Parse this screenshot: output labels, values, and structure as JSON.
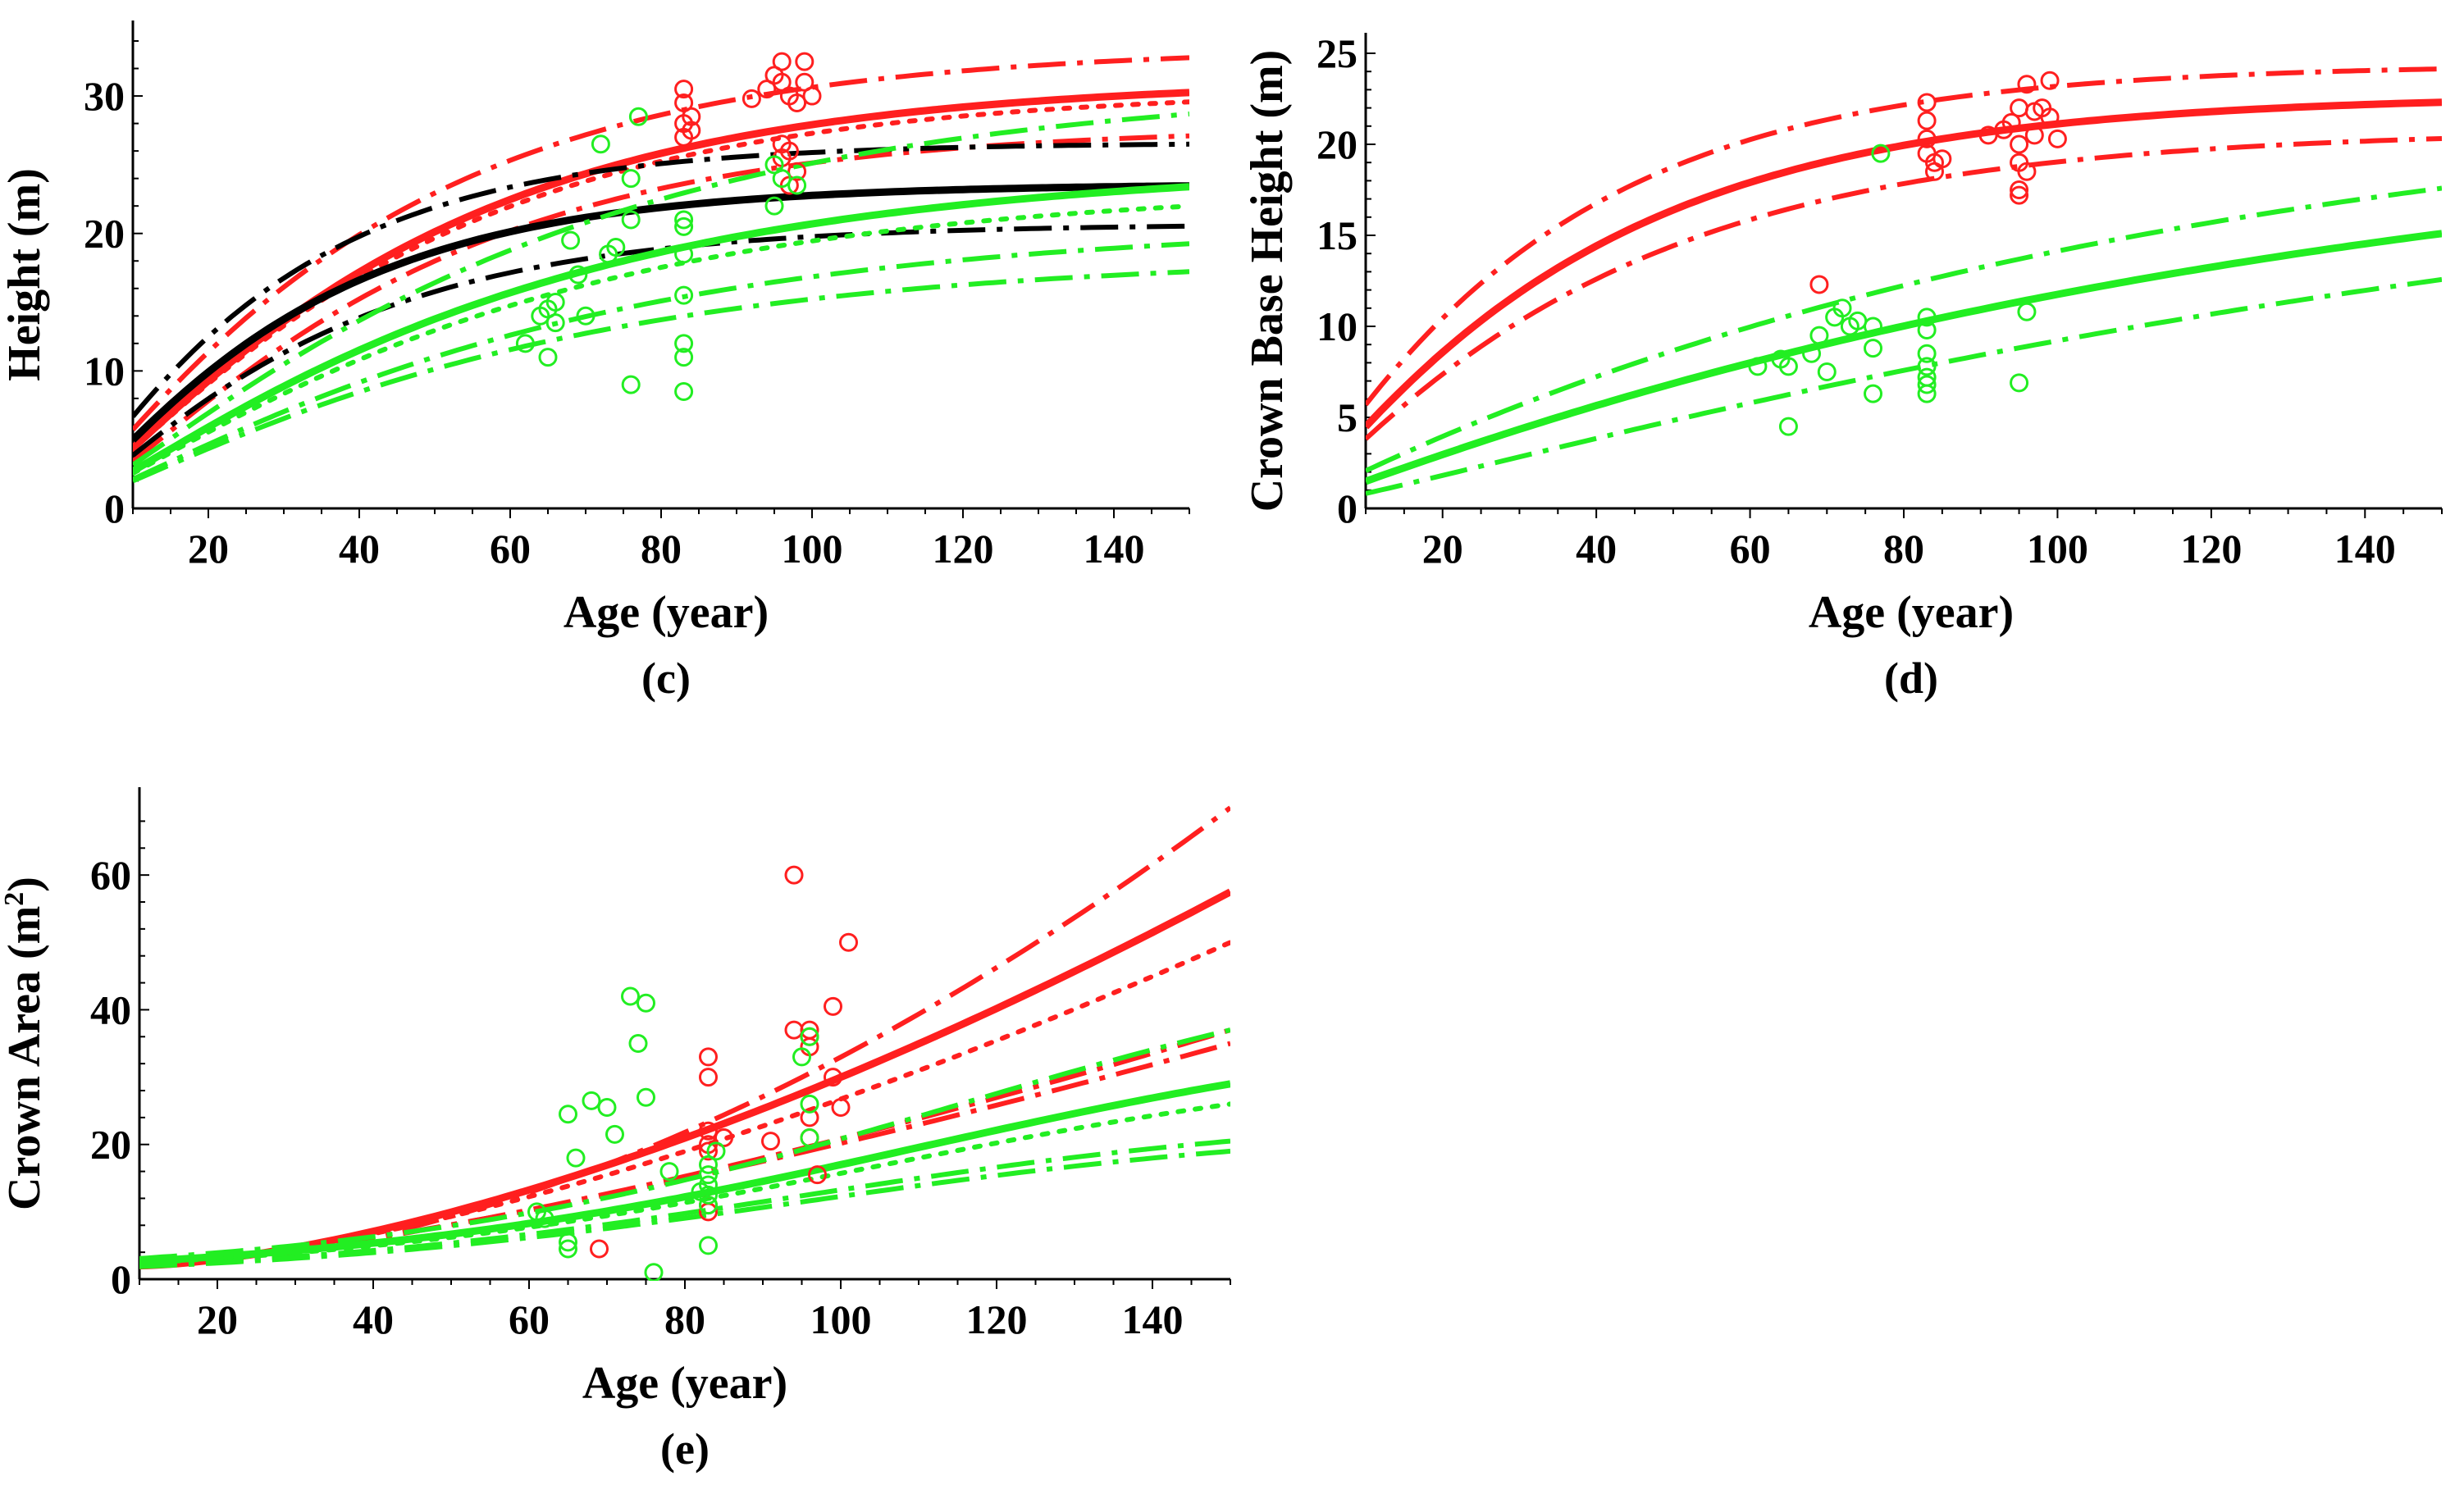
{
  "colors": {
    "red": "#ff1f1f",
    "green": "#22ee22",
    "black": "#000000"
  },
  "chart_data": [
    {
      "id": "c",
      "type": "line",
      "panel_label": "(c)",
      "xlabel": "Age (year)",
      "ylabel": "Height (m)",
      "ylabel_unit_sup": "",
      "xlim": [
        10,
        150
      ],
      "ylim": [
        0,
        34
      ],
      "xticks": [
        20,
        40,
        60,
        80,
        100,
        120,
        140
      ],
      "yticks": [
        0,
        10,
        20,
        30
      ],
      "grid": false,
      "legend": "none",
      "series": [
        {
          "color": "red",
          "style": "solid",
          "model": "sat",
          "params": [
            31.2,
            0.025,
            1.3
          ]
        },
        {
          "color": "red",
          "style": "dashdot",
          "model": "sat",
          "params": [
            33.6,
            0.026,
            1.2
          ]
        },
        {
          "color": "red",
          "style": "dashdot",
          "model": "sat",
          "params": [
            27.8,
            0.027,
            1.45
          ]
        },
        {
          "color": "red",
          "style": "dotted",
          "model": "sat",
          "params": [
            30.5,
            0.025,
            1.3
          ]
        },
        {
          "color": "black",
          "style": "solid",
          "model": "sat",
          "params": [
            23.6,
            0.036,
            1.3
          ]
        },
        {
          "color": "black",
          "style": "dashdot",
          "model": "sat",
          "params": [
            26.6,
            0.038,
            1.2
          ]
        },
        {
          "color": "black",
          "style": "dashdot",
          "model": "sat",
          "params": [
            20.7,
            0.034,
            1.35
          ]
        },
        {
          "color": "green",
          "style": "solid",
          "model": "sat",
          "params": [
            25.0,
            0.02,
            1.3
          ]
        },
        {
          "color": "green",
          "style": "dashdot",
          "model": "sat",
          "params": [
            31.0,
            0.019,
            1.3
          ]
        },
        {
          "color": "green",
          "style": "dashdot",
          "model": "sat",
          "params": [
            20.8,
            0.019,
            1.3
          ]
        },
        {
          "color": "green",
          "style": "dashdot",
          "model": "sat",
          "params": [
            18.4,
            0.02,
            1.3
          ]
        },
        {
          "color": "green",
          "style": "dotted",
          "model": "sat",
          "params": [
            23.5,
            0.02,
            1.3
          ]
        }
      ],
      "scatter": [
        {
          "color": "red",
          "points": [
            [
              83,
              30.5
            ],
            [
              83,
              29.5
            ],
            [
              83,
              28
            ],
            [
              84,
              28.5
            ],
            [
              84,
              27.5
            ],
            [
              83,
              27
            ],
            [
              92,
              29.8
            ],
            [
              94,
              30.5
            ],
            [
              95,
              31.5
            ],
            [
              96,
              32.5
            ],
            [
              96,
              31
            ],
            [
              97,
              30
            ],
            [
              98,
              29.5
            ],
            [
              99,
              32.5
            ],
            [
              99,
              31
            ],
            [
              100,
              30
            ],
            [
              96,
              26.5
            ],
            [
              96,
              25.5
            ],
            [
              97,
              26
            ],
            [
              98,
              24.5
            ],
            [
              97,
              23.5
            ]
          ]
        },
        {
          "color": "green",
          "points": [
            [
              62,
              12
            ],
            [
              64,
              14
            ],
            [
              65,
              11
            ],
            [
              65,
              14.5
            ],
            [
              66,
              15
            ],
            [
              66,
              13.5
            ],
            [
              68,
              19.5
            ],
            [
              69,
              17
            ],
            [
              70,
              14
            ],
            [
              72,
              26.5
            ],
            [
              73,
              18.5
            ],
            [
              74,
              19
            ],
            [
              76,
              9
            ],
            [
              76,
              21
            ],
            [
              76,
              24
            ],
            [
              77,
              28.5
            ],
            [
              83,
              8.5
            ],
            [
              83,
              11
            ],
            [
              83,
              12
            ],
            [
              83,
              15.5
            ],
            [
              83,
              18.5
            ],
            [
              83,
              20.5
            ],
            [
              83,
              21
            ],
            [
              95,
              22
            ],
            [
              96,
              24
            ],
            [
              95,
              25
            ],
            [
              98,
              23.5
            ]
          ]
        }
      ]
    },
    {
      "id": "d",
      "type": "line",
      "panel_label": "(d)",
      "xlabel": "Age (year)",
      "ylabel": "Crown Base Height (m)",
      "ylabel_unit_sup": "",
      "xlim": [
        10,
        150
      ],
      "ylim": [
        0,
        25
      ],
      "xticks": [
        20,
        40,
        60,
        80,
        100,
        120,
        140
      ],
      "yticks": [
        0,
        5,
        10,
        15,
        20,
        25
      ],
      "grid": false,
      "legend": "none",
      "series": [
        {
          "color": "red",
          "style": "solid",
          "model": "sat",
          "params": [
            22.7,
            0.028,
            1.15
          ]
        },
        {
          "color": "red",
          "style": "dashdot",
          "model": "sat",
          "params": [
            24.4,
            0.031,
            1.1
          ]
        },
        {
          "color": "red",
          "style": "dashdot",
          "model": "sat",
          "params": [
            20.8,
            0.026,
            1.15
          ]
        },
        {
          "color": "green",
          "style": "solid",
          "model": "sat",
          "params": [
            22.0,
            0.008,
            1.05
          ]
        },
        {
          "color": "green",
          "style": "dashdot",
          "model": "sat",
          "params": [
            23.5,
            0.0092,
            1.0
          ]
        },
        {
          "color": "green",
          "style": "dashdot",
          "model": "sat",
          "params": [
            21.5,
            0.0068,
            1.2
          ]
        }
      ],
      "scatter": [
        {
          "color": "red",
          "points": [
            [
              69,
              12.3
            ],
            [
              83,
              22.3
            ],
            [
              83,
              21.3
            ],
            [
              83,
              20.3
            ],
            [
              83,
              19.5
            ],
            [
              84,
              19
            ],
            [
              84,
              18.5
            ],
            [
              85,
              19.2
            ],
            [
              91,
              20.5
            ],
            [
              93,
              20.8
            ],
            [
              95,
              22
            ],
            [
              95,
              20
            ],
            [
              95,
              19
            ],
            [
              95,
              17.5
            ],
            [
              95,
              17.2
            ],
            [
              96,
              23.3
            ],
            [
              97,
              21.8
            ],
            [
              97,
              20.5
            ],
            [
              98,
              22
            ],
            [
              99,
              23.5
            ],
            [
              99,
              21.5
            ],
            [
              100,
              20.3
            ],
            [
              96,
              18.5
            ],
            [
              94,
              21.2
            ]
          ]
        },
        {
          "color": "green",
          "points": [
            [
              61,
              7.8
            ],
            [
              64,
              8.2
            ],
            [
              65,
              4.5
            ],
            [
              65,
              7.8
            ],
            [
              68,
              8.5
            ],
            [
              69,
              9.5
            ],
            [
              70,
              7.5
            ],
            [
              71,
              10.5
            ],
            [
              72,
              11
            ],
            [
              73,
              10
            ],
            [
              74,
              10.3
            ],
            [
              76,
              6.3
            ],
            [
              76,
              8.8
            ],
            [
              76,
              10
            ],
            [
              77,
              19.5
            ],
            [
              83,
              6.3
            ],
            [
              83,
              6.8
            ],
            [
              83,
              7.2
            ],
            [
              83,
              7.8
            ],
            [
              83,
              8.5
            ],
            [
              83,
              9.8
            ],
            [
              83,
              10.5
            ],
            [
              95,
              6.9
            ],
            [
              96,
              10.8
            ]
          ]
        }
      ]
    },
    {
      "id": "e",
      "type": "line",
      "panel_label": "(e)",
      "xlabel": "Age (year)",
      "ylabel": "Crown Area (m",
      "ylabel_unit_sup": "2",
      "ylabel_suffix": ")",
      "xlim": [
        10,
        150
      ],
      "ylim": [
        0,
        70
      ],
      "xticks": [
        20,
        40,
        60,
        80,
        100,
        120,
        140
      ],
      "yticks": [
        0,
        20,
        40,
        60
      ],
      "grid": false,
      "legend": "none",
      "series": [
        {
          "color": "red",
          "style": "solid",
          "model": "pow",
          "params": [
            57.5,
            2.0,
            1.55
          ]
        },
        {
          "color": "red",
          "style": "dashdot",
          "model": "pow",
          "params": [
            70.0,
            2.0,
            1.78
          ]
        },
        {
          "color": "red",
          "style": "dashdot",
          "model": "pow",
          "params": [
            35.0,
            2.0,
            1.35
          ]
        },
        {
          "color": "red",
          "style": "dashdot",
          "model": "pow",
          "params": [
            37.0,
            2.0,
            1.4
          ]
        },
        {
          "color": "red",
          "style": "dotted",
          "model": "pow",
          "params": [
            50.0,
            2.0,
            1.5
          ]
        },
        {
          "color": "green",
          "style": "solid",
          "model": "log",
          "params": [
            29.0,
            110,
            38
          ]
        },
        {
          "color": "green",
          "style": "dashdot",
          "model": "log",
          "params": [
            37.0,
            115,
            38
          ]
        },
        {
          "color": "green",
          "style": "dashdot",
          "model": "log",
          "params": [
            20.5,
            95,
            35
          ]
        },
        {
          "color": "green",
          "style": "dashdot",
          "model": "log",
          "params": [
            19.0,
            95,
            35
          ]
        },
        {
          "color": "green",
          "style": "dotted",
          "model": "log",
          "params": [
            26.0,
            105,
            37
          ]
        }
      ],
      "scatter": [
        {
          "color": "red",
          "points": [
            [
              69,
              4.5
            ],
            [
              83,
              10
            ],
            [
              83,
              11
            ],
            [
              83,
              19
            ],
            [
              83,
              20
            ],
            [
              83,
              22
            ],
            [
              83,
              30
            ],
            [
              83,
              33
            ],
            [
              85,
              21
            ],
            [
              91,
              20.5
            ],
            [
              94,
              60
            ],
            [
              94,
              37
            ],
            [
              96,
              34.5
            ],
            [
              96,
              36
            ],
            [
              96,
              37
            ],
            [
              96,
              24
            ],
            [
              96,
              21
            ],
            [
              97,
              15.5
            ],
            [
              99,
              40.5
            ],
            [
              99,
              30
            ],
            [
              100,
              25.5
            ],
            [
              101,
              50
            ]
          ]
        },
        {
          "color": "green",
          "points": [
            [
              61,
              10
            ],
            [
              62,
              9
            ],
            [
              65,
              4.5
            ],
            [
              65,
              5.5
            ],
            [
              65,
              24.5
            ],
            [
              66,
              18
            ],
            [
              68,
              26.5
            ],
            [
              70,
              25.5
            ],
            [
              71,
              21.5
            ],
            [
              73,
              42
            ],
            [
              74,
              35
            ],
            [
              75,
              41
            ],
            [
              75,
              27
            ],
            [
              76,
              1
            ],
            [
              78,
              16
            ],
            [
              82,
              13
            ],
            [
              83,
              5
            ],
            [
              83,
              11
            ],
            [
              83,
              12.5
            ],
            [
              83,
              14
            ],
            [
              83,
              15.5
            ],
            [
              83,
              17
            ],
            [
              84,
              19
            ],
            [
              95,
              33
            ],
            [
              96,
              36
            ],
            [
              96,
              26
            ],
            [
              96,
              21
            ]
          ]
        }
      ]
    }
  ]
}
